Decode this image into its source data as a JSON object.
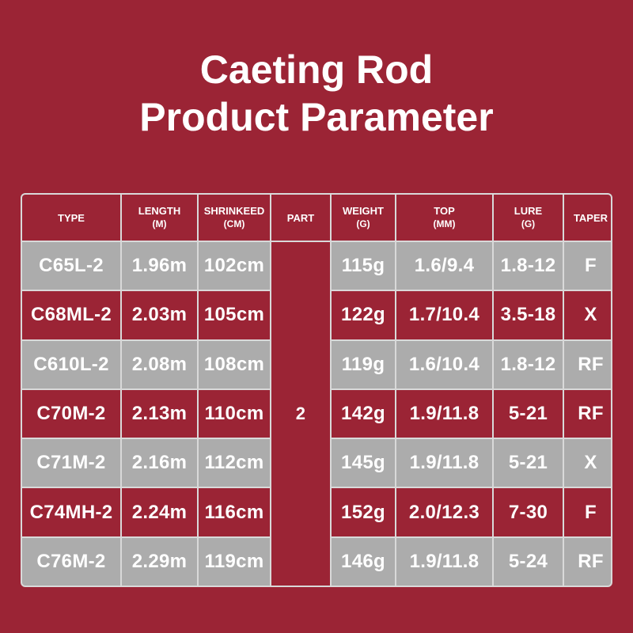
{
  "title": {
    "line1": "Caeting Rod",
    "line2": "Product Parameter"
  },
  "table": {
    "headers": [
      {
        "main": "TYPE",
        "sub": ""
      },
      {
        "main": "LENGTH",
        "sub": "(M)"
      },
      {
        "main": "SHRINKEED",
        "sub": "(CM)"
      },
      {
        "main": "PART",
        "sub": ""
      },
      {
        "main": "WEIGHT",
        "sub": "(G)"
      },
      {
        "main": "TOP",
        "sub": "(MM)"
      },
      {
        "main": "LURE",
        "sub": "(G)"
      },
      {
        "main": "TAPER",
        "sub": ""
      }
    ],
    "part_value": "2",
    "rows": [
      {
        "type": "C65L-2",
        "length": "1.96m",
        "shrinked": "102cm",
        "weight": "115g",
        "top": "1.6/9.4",
        "lure": "1.8-12",
        "taper": "F"
      },
      {
        "type": "C68ML-2",
        "length": "2.03m",
        "shrinked": "105cm",
        "weight": "122g",
        "top": "1.7/10.4",
        "lure": "3.5-18",
        "taper": "X"
      },
      {
        "type": "C610L-2",
        "length": "2.08m",
        "shrinked": "108cm",
        "weight": "119g",
        "top": "1.6/10.4",
        "lure": "1.8-12",
        "taper": "RF"
      },
      {
        "type": "C70M-2",
        "length": "2.13m",
        "shrinked": "110cm",
        "weight": "142g",
        "top": "1.9/11.8",
        "lure": "5-21",
        "taper": "RF"
      },
      {
        "type": "C71M-2",
        "length": "2.16m",
        "shrinked": "112cm",
        "weight": "145g",
        "top": "1.9/11.8",
        "lure": "5-21",
        "taper": "X"
      },
      {
        "type": "C74MH-2",
        "length": "2.24m",
        "shrinked": "116cm",
        "weight": "152g",
        "top": "2.0/12.3",
        "lure": "7-30",
        "taper": "F"
      },
      {
        "type": "C76M-2",
        "length": "2.29m",
        "shrinked": "119cm",
        "weight": "146g",
        "top": "1.9/11.8",
        "lure": "5-24",
        "taper": "RF"
      }
    ]
  }
}
